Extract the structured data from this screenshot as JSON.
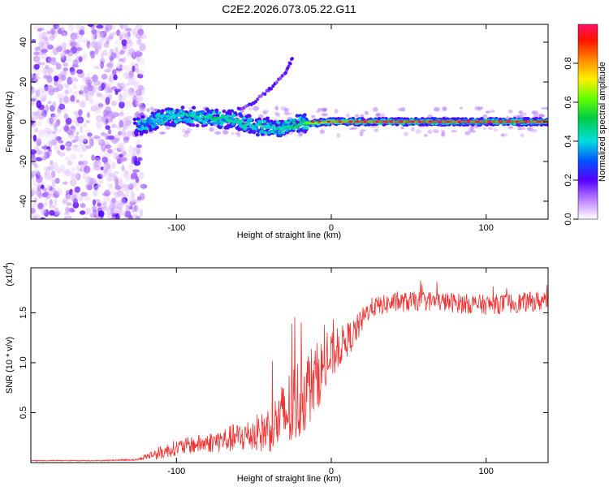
{
  "title": "C2E2.2026.073.05.22.G11",
  "chart_data": [
    {
      "type": "heatmap",
      "xlabel": "Height of straight line (km)",
      "ylabel": "Frequency (Hz)",
      "xlim": [
        -194,
        140
      ],
      "ylim": [
        -49,
        49
      ],
      "xticks": [
        -100,
        0,
        100
      ],
      "xtick_labels": [
        "-100",
        "0",
        "100"
      ],
      "yticks": [
        -40,
        -20,
        0,
        20,
        40
      ],
      "ytick_labels": [
        "-40",
        "-20",
        "0",
        "20",
        "40"
      ],
      "colorbar": {
        "label": "Normalized spectral amplitude",
        "range": [
          0,
          1
        ],
        "ticks": [
          0,
          0.2,
          0.4,
          0.6,
          0.8
        ],
        "tick_labels": [
          "0.0",
          "0.2",
          "0.4",
          "0.6",
          "0.8"
        ]
      },
      "colors": {
        "low": "#cc99ff",
        "mid": "#00cccc",
        "high": "#ff3366",
        "line": "#00dd44"
      },
      "features": {
        "noise_region_x": [
          -194,
          -125
        ],
        "band_center_hz": 0,
        "band_series": [
          {
            "x": -127,
            "y": -3,
            "amp": 0.25
          },
          {
            "x": -110,
            "y": 2,
            "amp": 0.4
          },
          {
            "x": -95,
            "y": 3,
            "amp": 0.45
          },
          {
            "x": -80,
            "y": 2,
            "amp": 0.5
          },
          {
            "x": -65,
            "y": 1,
            "amp": 0.5
          },
          {
            "x": -50,
            "y": -2,
            "amp": 0.45
          },
          {
            "x": -35,
            "y": -3,
            "amp": 0.45
          },
          {
            "x": -20,
            "y": -1,
            "amp": 0.55
          },
          {
            "x": 0,
            "y": 0,
            "amp": 0.8
          },
          {
            "x": 20,
            "y": 0,
            "amp": 0.9
          },
          {
            "x": 40,
            "y": 0,
            "amp": 0.95
          },
          {
            "x": 60,
            "y": 0,
            "amp": 0.95
          },
          {
            "x": 80,
            "y": 0,
            "amp": 0.95
          },
          {
            "x": 100,
            "y": 0,
            "amp": 0.95
          },
          {
            "x": 120,
            "y": 0,
            "amp": 0.95
          },
          {
            "x": 140,
            "y": 0,
            "amp": 0.9
          }
        ],
        "secondary_branch": [
          {
            "x": -60,
            "y": 6
          },
          {
            "x": -50,
            "y": 10
          },
          {
            "x": -40,
            "y": 16
          },
          {
            "x": -30,
            "y": 24
          },
          {
            "x": -25,
            "y": 32
          }
        ]
      }
    },
    {
      "type": "line",
      "xlabel": "Height of straight line (km)",
      "ylabel": "SNR (10 * v/v)",
      "y_multiplier_label": "(x10",
      "y_multiplier_exp": "4",
      "xlim": [
        -194,
        140
      ],
      "ylim": [
        0,
        1.95
      ],
      "xticks": [
        -100,
        0,
        100
      ],
      "xtick_labels": [
        "-100",
        "0",
        "100"
      ],
      "yticks": [
        0.5,
        1.0,
        1.5
      ],
      "ytick_labels": [
        "0.5",
        "1.0",
        "1.5"
      ],
      "series": [
        {
          "name": "SNR",
          "color": "#ee3333",
          "envelope": {
            "x": [
              -194,
              -150,
              -125,
              -120,
              -110,
              -100,
              -80,
              -60,
              -45,
              -35,
              -25,
              -15,
              -5,
              5,
              15,
              25,
              40,
              60,
              80,
              100,
              120,
              140
            ],
            "y": [
              0.02,
              0.02,
              0.03,
              0.06,
              0.1,
              0.15,
              0.2,
              0.25,
              0.3,
              0.4,
              0.55,
              0.75,
              0.95,
              1.15,
              1.3,
              1.55,
              1.6,
              1.62,
              1.6,
              1.58,
              1.6,
              1.62
            ],
            "noise": [
              0.005,
              0.005,
              0.01,
              0.03,
              0.07,
              0.08,
              0.1,
              0.15,
              0.2,
              0.3,
              0.45,
              0.4,
              0.3,
              0.2,
              0.15,
              0.1,
              0.1,
              0.1,
              0.1,
              0.1,
              0.1,
              0.1
            ]
          }
        }
      ]
    }
  ]
}
